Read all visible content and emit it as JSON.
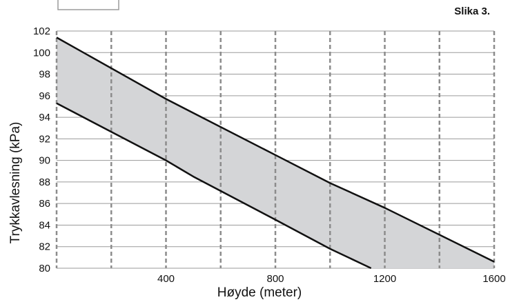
{
  "caption": "Slika 3.",
  "chart_data": {
    "type": "area",
    "title": "",
    "xlabel": "Høyde (meter)",
    "ylabel": "Trykkavlesning (kPa)",
    "xlim": [
      0,
      1600
    ],
    "ylim": [
      80,
      102
    ],
    "x_ticks": [
      400,
      800,
      1200,
      1600
    ],
    "y_ticks": [
      80,
      82,
      84,
      86,
      88,
      90,
      92,
      94,
      96,
      98,
      100,
      102
    ],
    "vertical_gridlines_at": [
      0,
      200,
      400,
      600,
      800,
      1000,
      1200,
      1400,
      1600
    ],
    "vertical_grid_style": "dashed",
    "horizontal_grid": true,
    "fill_color": "#d4d5d7",
    "line_color": "#111111",
    "series": [
      {
        "x": [
          0,
          400,
          500,
          800,
          1000,
          1200,
          1600
        ],
        "y": [
          101.4,
          95.7,
          94.4,
          90.5,
          87.9,
          85.6,
          80.6
        ]
      },
      {
        "x": [
          0,
          400,
          500,
          800,
          1000,
          1150
        ],
        "y": [
          95.3,
          90.0,
          88.5,
          84.5,
          81.8,
          80.0
        ]
      }
    ]
  }
}
